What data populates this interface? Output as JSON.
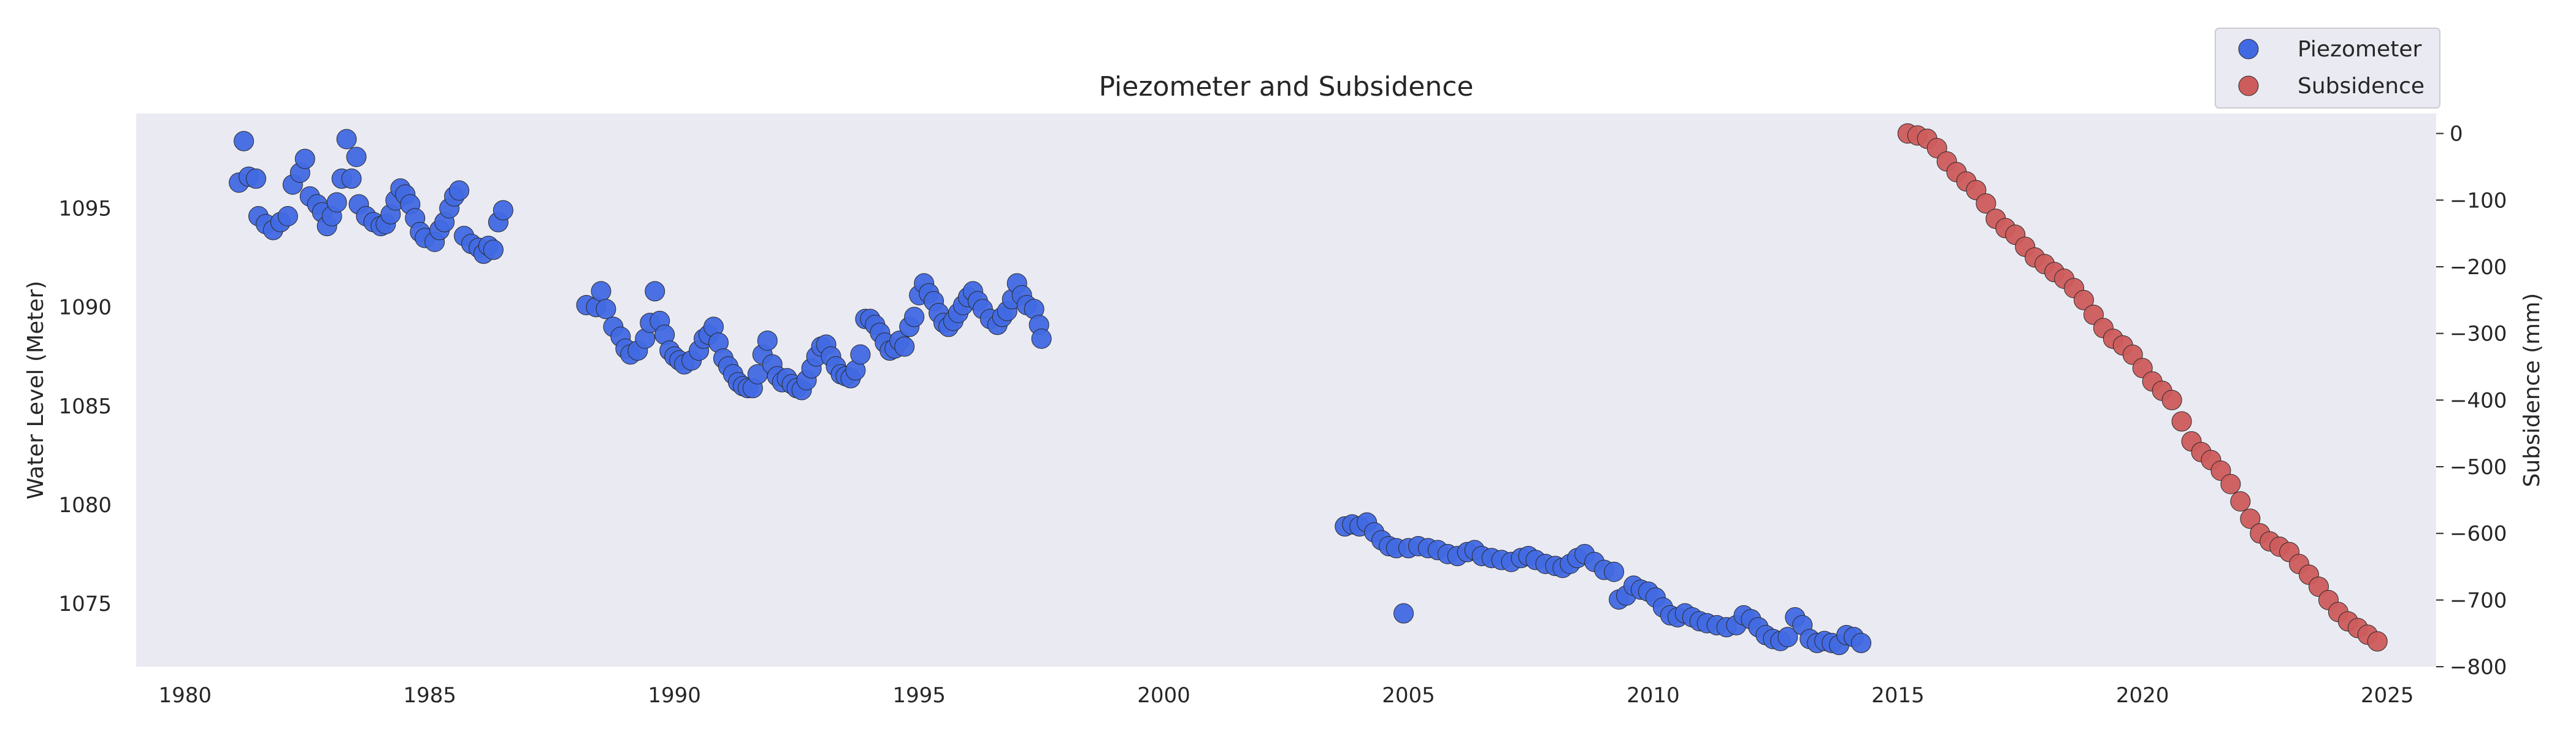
{
  "chart_data": {
    "type": "scatter",
    "title": "Piezometer and Subsidence",
    "xlabel": "",
    "ylabel": "Water Level (Meter)",
    "y2label": "Subsidence (mm)",
    "xlim": [
      1979,
      2026
    ],
    "ylim": [
      1071.8,
      1099.8
    ],
    "y2lim": [
      -800,
      30
    ],
    "x_ticks": [
      1980,
      1985,
      1990,
      1995,
      2000,
      2005,
      2010,
      2015,
      2020,
      2025
    ],
    "y_ticks": [
      1075,
      1080,
      1085,
      1090,
      1095
    ],
    "y2_ticks": [
      -800,
      -700,
      -600,
      -500,
      -400,
      -300,
      -200,
      -100,
      0
    ],
    "grid": false,
    "legend": {
      "placement": "top-right, above plot",
      "entries": [
        "Piezometer",
        "Subsidence"
      ]
    },
    "colors": {
      "piezometer": "#4169e1",
      "subsidence": "#cd5c5c",
      "plot_bg": "#eaeaf2"
    },
    "series": [
      {
        "name": "Piezometer",
        "axis": "left",
        "points": [
          [
            1981.1,
            1096.3
          ],
          [
            1981.2,
            1098.4
          ],
          [
            1981.3,
            1096.6
          ],
          [
            1981.45,
            1096.5
          ],
          [
            1981.5,
            1094.6
          ],
          [
            1981.65,
            1094.2
          ],
          [
            1981.8,
            1093.9
          ],
          [
            1981.95,
            1094.3
          ],
          [
            1982.1,
            1094.6
          ],
          [
            1982.2,
            1096.2
          ],
          [
            1982.35,
            1096.8
          ],
          [
            1982.45,
            1097.5
          ],
          [
            1982.55,
            1095.6
          ],
          [
            1982.7,
            1095.2
          ],
          [
            1982.8,
            1094.8
          ],
          [
            1982.9,
            1094.1
          ],
          [
            1983.0,
            1094.6
          ],
          [
            1983.1,
            1095.3
          ],
          [
            1983.2,
            1096.5
          ],
          [
            1983.3,
            1098.5
          ],
          [
            1983.4,
            1096.5
          ],
          [
            1983.5,
            1097.6
          ],
          [
            1983.55,
            1095.2
          ],
          [
            1983.7,
            1094.6
          ],
          [
            1983.85,
            1094.3
          ],
          [
            1984.0,
            1094.1
          ],
          [
            1984.1,
            1094.2
          ],
          [
            1984.2,
            1094.7
          ],
          [
            1984.3,
            1095.4
          ],
          [
            1984.4,
            1096.0
          ],
          [
            1984.5,
            1095.7
          ],
          [
            1984.6,
            1095.2
          ],
          [
            1984.7,
            1094.5
          ],
          [
            1984.8,
            1093.8
          ],
          [
            1984.9,
            1093.5
          ],
          [
            1985.1,
            1093.3
          ],
          [
            1985.2,
            1093.9
          ],
          [
            1985.3,
            1094.3
          ],
          [
            1985.4,
            1095.0
          ],
          [
            1985.5,
            1095.6
          ],
          [
            1985.6,
            1095.9
          ],
          [
            1985.7,
            1093.6
          ],
          [
            1985.85,
            1093.2
          ],
          [
            1986.0,
            1093.0
          ],
          [
            1986.1,
            1092.7
          ],
          [
            1986.2,
            1093.1
          ],
          [
            1986.3,
            1092.9
          ],
          [
            1986.4,
            1094.3
          ],
          [
            1986.5,
            1094.9
          ],
          [
            1988.2,
            1090.1
          ],
          [
            1988.4,
            1090.0
          ],
          [
            1988.5,
            1090.8
          ],
          [
            1988.6,
            1089.9
          ],
          [
            1988.75,
            1089.0
          ],
          [
            1988.9,
            1088.5
          ],
          [
            1989.0,
            1087.9
          ],
          [
            1989.1,
            1087.6
          ],
          [
            1989.25,
            1087.8
          ],
          [
            1989.4,
            1088.4
          ],
          [
            1989.5,
            1089.2
          ],
          [
            1989.6,
            1090.8
          ],
          [
            1989.7,
            1089.3
          ],
          [
            1989.8,
            1088.6
          ],
          [
            1989.9,
            1087.8
          ],
          [
            1990.0,
            1087.5
          ],
          [
            1990.1,
            1087.3
          ],
          [
            1990.2,
            1087.1
          ],
          [
            1990.35,
            1087.3
          ],
          [
            1990.5,
            1087.8
          ],
          [
            1990.6,
            1088.4
          ],
          [
            1990.7,
            1088.6
          ],
          [
            1990.8,
            1089.0
          ],
          [
            1990.9,
            1088.2
          ],
          [
            1991.0,
            1087.4
          ],
          [
            1991.1,
            1087.0
          ],
          [
            1991.2,
            1086.6
          ],
          [
            1991.3,
            1086.2
          ],
          [
            1991.4,
            1086.0
          ],
          [
            1991.5,
            1085.9
          ],
          [
            1991.6,
            1085.9
          ],
          [
            1991.7,
            1086.6
          ],
          [
            1991.8,
            1087.6
          ],
          [
            1991.9,
            1088.3
          ],
          [
            1992.0,
            1087.1
          ],
          [
            1992.1,
            1086.5
          ],
          [
            1992.2,
            1086.2
          ],
          [
            1992.3,
            1086.4
          ],
          [
            1992.4,
            1086.1
          ],
          [
            1992.5,
            1085.9
          ],
          [
            1992.6,
            1085.8
          ],
          [
            1992.7,
            1086.3
          ],
          [
            1992.8,
            1086.9
          ],
          [
            1992.9,
            1087.5
          ],
          [
            1993.0,
            1088.0
          ],
          [
            1993.1,
            1088.1
          ],
          [
            1993.2,
            1087.5
          ],
          [
            1993.3,
            1087.0
          ],
          [
            1993.4,
            1086.6
          ],
          [
            1993.5,
            1086.5
          ],
          [
            1993.6,
            1086.4
          ],
          [
            1993.7,
            1086.8
          ],
          [
            1993.8,
            1087.6
          ],
          [
            1993.9,
            1089.4
          ],
          [
            1994.0,
            1089.4
          ],
          [
            1994.1,
            1089.1
          ],
          [
            1994.2,
            1088.7
          ],
          [
            1994.3,
            1088.2
          ],
          [
            1994.4,
            1087.8
          ],
          [
            1994.5,
            1087.9
          ],
          [
            1994.6,
            1088.3
          ],
          [
            1994.7,
            1088.0
          ],
          [
            1994.8,
            1089.0
          ],
          [
            1994.9,
            1089.5
          ],
          [
            1995.0,
            1090.6
          ],
          [
            1995.1,
            1091.2
          ],
          [
            1995.2,
            1090.7
          ],
          [
            1995.3,
            1090.3
          ],
          [
            1995.4,
            1089.7
          ],
          [
            1995.5,
            1089.2
          ],
          [
            1995.6,
            1089.0
          ],
          [
            1995.7,
            1089.3
          ],
          [
            1995.8,
            1089.7
          ],
          [
            1995.9,
            1090.1
          ],
          [
            1996.0,
            1090.5
          ],
          [
            1996.1,
            1090.8
          ],
          [
            1996.2,
            1090.3
          ],
          [
            1996.3,
            1089.9
          ],
          [
            1996.45,
            1089.4
          ],
          [
            1996.6,
            1089.1
          ],
          [
            1996.7,
            1089.5
          ],
          [
            1996.8,
            1089.8
          ],
          [
            1996.9,
            1090.4
          ],
          [
            1997.0,
            1091.2
          ],
          [
            1997.1,
            1090.6
          ],
          [
            1997.2,
            1090.1
          ],
          [
            1997.35,
            1089.9
          ],
          [
            1997.45,
            1089.1
          ],
          [
            1997.5,
            1088.4
          ],
          [
            2003.7,
            1078.9
          ],
          [
            2003.85,
            1079.0
          ],
          [
            2004.0,
            1078.9
          ],
          [
            2004.15,
            1079.1
          ],
          [
            2004.3,
            1078.6
          ],
          [
            2004.45,
            1078.2
          ],
          [
            2004.6,
            1077.9
          ],
          [
            2004.75,
            1077.8
          ],
          [
            2004.9,
            1074.5
          ],
          [
            2005.0,
            1077.8
          ],
          [
            2005.2,
            1077.9
          ],
          [
            2005.4,
            1077.8
          ],
          [
            2005.6,
            1077.7
          ],
          [
            2005.8,
            1077.5
          ],
          [
            2006.0,
            1077.4
          ],
          [
            2006.2,
            1077.6
          ],
          [
            2006.35,
            1077.7
          ],
          [
            2006.5,
            1077.4
          ],
          [
            2006.7,
            1077.3
          ],
          [
            2006.9,
            1077.2
          ],
          [
            2007.1,
            1077.1
          ],
          [
            2007.3,
            1077.3
          ],
          [
            2007.45,
            1077.4
          ],
          [
            2007.6,
            1077.2
          ],
          [
            2007.8,
            1077.0
          ],
          [
            2008.0,
            1076.9
          ],
          [
            2008.15,
            1076.8
          ],
          [
            2008.3,
            1077.0
          ],
          [
            2008.45,
            1077.3
          ],
          [
            2008.6,
            1077.5
          ],
          [
            2008.8,
            1077.1
          ],
          [
            2009.0,
            1076.7
          ],
          [
            2009.2,
            1076.6
          ],
          [
            2009.3,
            1075.2
          ],
          [
            2009.45,
            1075.4
          ],
          [
            2009.6,
            1075.9
          ],
          [
            2009.75,
            1075.7
          ],
          [
            2009.9,
            1075.6
          ],
          [
            2010.05,
            1075.3
          ],
          [
            2010.2,
            1074.8
          ],
          [
            2010.35,
            1074.4
          ],
          [
            2010.5,
            1074.3
          ],
          [
            2010.65,
            1074.5
          ],
          [
            2010.8,
            1074.3
          ],
          [
            2010.95,
            1074.1
          ],
          [
            2011.1,
            1074.0
          ],
          [
            2011.3,
            1073.9
          ],
          [
            2011.5,
            1073.8
          ],
          [
            2011.7,
            1073.9
          ],
          [
            2011.85,
            1074.4
          ],
          [
            2012.0,
            1074.2
          ],
          [
            2012.15,
            1073.8
          ],
          [
            2012.3,
            1073.4
          ],
          [
            2012.45,
            1073.2
          ],
          [
            2012.6,
            1073.1
          ],
          [
            2012.75,
            1073.3
          ],
          [
            2012.9,
            1074.3
          ],
          [
            2013.05,
            1073.9
          ],
          [
            2013.2,
            1073.2
          ],
          [
            2013.35,
            1073.0
          ],
          [
            2013.5,
            1073.1
          ],
          [
            2013.65,
            1073.0
          ],
          [
            2013.8,
            1072.9
          ],
          [
            2013.95,
            1073.4
          ],
          [
            2014.1,
            1073.3
          ],
          [
            2014.25,
            1073.0
          ]
        ]
      },
      {
        "name": "Subsidence",
        "axis": "right",
        "points": [
          [
            2015.2,
            0
          ],
          [
            2015.4,
            -3
          ],
          [
            2015.6,
            -8
          ],
          [
            2015.8,
            -22
          ],
          [
            2016.0,
            -42
          ],
          [
            2016.2,
            -58
          ],
          [
            2016.4,
            -72
          ],
          [
            2016.6,
            -85
          ],
          [
            2016.8,
            -105
          ],
          [
            2017.0,
            -128
          ],
          [
            2017.2,
            -142
          ],
          [
            2017.4,
            -152
          ],
          [
            2017.6,
            -170
          ],
          [
            2017.8,
            -186
          ],
          [
            2018.0,
            -196
          ],
          [
            2018.2,
            -208
          ],
          [
            2018.4,
            -218
          ],
          [
            2018.6,
            -232
          ],
          [
            2018.8,
            -250
          ],
          [
            2019.0,
            -272
          ],
          [
            2019.2,
            -292
          ],
          [
            2019.4,
            -308
          ],
          [
            2019.6,
            -318
          ],
          [
            2019.8,
            -332
          ],
          [
            2020.0,
            -352
          ],
          [
            2020.2,
            -372
          ],
          [
            2020.4,
            -386
          ],
          [
            2020.6,
            -400
          ],
          [
            2020.8,
            -432
          ],
          [
            2021.0,
            -462
          ],
          [
            2021.2,
            -478
          ],
          [
            2021.4,
            -490
          ],
          [
            2021.6,
            -506
          ],
          [
            2021.8,
            -526
          ],
          [
            2022.0,
            -552
          ],
          [
            2022.2,
            -578
          ],
          [
            2022.4,
            -600
          ],
          [
            2022.6,
            -612
          ],
          [
            2022.8,
            -620
          ],
          [
            2023.0,
            -628
          ],
          [
            2023.2,
            -646
          ],
          [
            2023.4,
            -662
          ],
          [
            2023.6,
            -680
          ],
          [
            2023.8,
            -700
          ],
          [
            2024.0,
            -718
          ],
          [
            2024.2,
            -732
          ],
          [
            2024.4,
            -742
          ],
          [
            2024.6,
            -752
          ],
          [
            2024.8,
            -762
          ]
        ]
      }
    ]
  }
}
